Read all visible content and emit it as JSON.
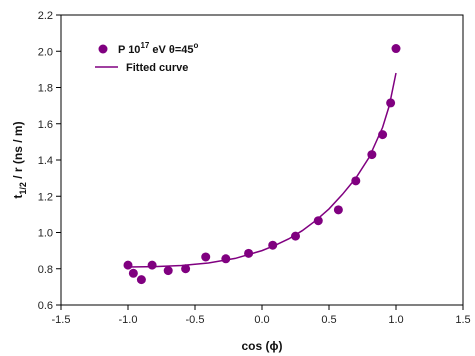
{
  "chart_data": {
    "type": "scatter",
    "title": "",
    "xlabel": "cos (ϕ)",
    "ylabel_main": "t",
    "ylabel_sub": "1/2",
    "ylabel_rest": " / r (ns / m)",
    "xlim": [
      -1.5,
      1.5
    ],
    "ylim": [
      0.6,
      2.2
    ],
    "x_ticks": [
      -1.5,
      -1.0,
      -0.5,
      0.0,
      0.5,
      1.0,
      1.5
    ],
    "x_tick_labels": [
      "-1.5",
      "-1.0",
      "-0.5",
      "0.0",
      "0.5",
      "1.0",
      "1.5"
    ],
    "y_ticks": [
      0.6,
      0.8,
      1.0,
      1.2,
      1.4,
      1.6,
      1.8,
      2.0,
      2.2
    ],
    "y_tick_labels": [
      "0.6",
      "0.8",
      "1.0",
      "1.2",
      "1.4",
      "1.6",
      "1.8",
      "2.0",
      "2.2"
    ],
    "grid": false,
    "legend_position": "top-left",
    "series": [
      {
        "name_parts": {
          "base": "P 10",
          "sup1": "17",
          "mid": " eV θ=45",
          "sup2": "o"
        },
        "kind": "scatter",
        "color": "#800080",
        "points": [
          {
            "x": -1.0,
            "y": 0.82
          },
          {
            "x": -0.96,
            "y": 0.775
          },
          {
            "x": -0.9,
            "y": 0.74
          },
          {
            "x": -0.82,
            "y": 0.82
          },
          {
            "x": -0.7,
            "y": 0.79
          },
          {
            "x": -0.57,
            "y": 0.8
          },
          {
            "x": -0.42,
            "y": 0.865
          },
          {
            "x": -0.27,
            "y": 0.855
          },
          {
            "x": -0.1,
            "y": 0.885
          },
          {
            "x": 0.08,
            "y": 0.93
          },
          {
            "x": 0.25,
            "y": 0.98
          },
          {
            "x": 0.42,
            "y": 1.065
          },
          {
            "x": 0.57,
            "y": 1.125
          },
          {
            "x": 0.7,
            "y": 1.285
          },
          {
            "x": 0.82,
            "y": 1.43
          },
          {
            "x": 0.9,
            "y": 1.54
          },
          {
            "x": 0.96,
            "y": 1.715
          },
          {
            "x": 1.0,
            "y": 2.015
          }
        ]
      },
      {
        "name": "Fitted curve",
        "kind": "line",
        "color": "#800080",
        "points": [
          {
            "x": -1.0,
            "y": 0.81
          },
          {
            "x": -0.8,
            "y": 0.812
          },
          {
            "x": -0.6,
            "y": 0.818
          },
          {
            "x": -0.4,
            "y": 0.832
          },
          {
            "x": -0.2,
            "y": 0.857
          },
          {
            "x": 0.0,
            "y": 0.9
          },
          {
            "x": 0.1,
            "y": 0.93
          },
          {
            "x": 0.2,
            "y": 0.965
          },
          {
            "x": 0.3,
            "y": 1.01
          },
          {
            "x": 0.4,
            "y": 1.065
          },
          {
            "x": 0.5,
            "y": 1.13
          },
          {
            "x": 0.6,
            "y": 1.21
          },
          {
            "x": 0.7,
            "y": 1.3
          },
          {
            "x": 0.8,
            "y": 1.415
          },
          {
            "x": 0.9,
            "y": 1.58
          },
          {
            "x": 0.95,
            "y": 1.7
          },
          {
            "x": 1.0,
            "y": 1.88
          }
        ]
      }
    ]
  }
}
